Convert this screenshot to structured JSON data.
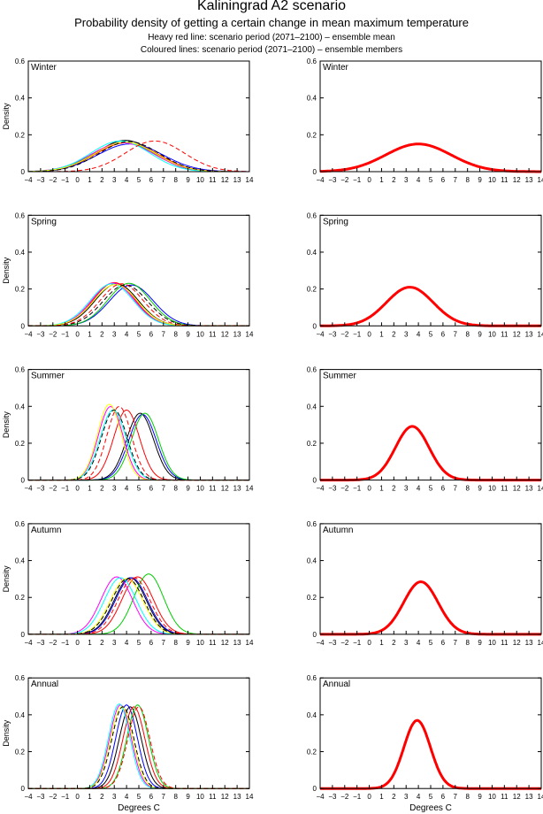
{
  "header": {
    "title": "Kaliningrad A2 scenario",
    "subtitle": "Probability density of getting a certain change in mean maximum temperature",
    "line1": "Heavy red line: scenario period (2071–2100) – ensemble mean",
    "line2": "Coloured lines: scenario period (2071–2100) – ensemble members"
  },
  "chart_data": {
    "type": "line",
    "xlabel": "Degrees C",
    "ylabel": "Density",
    "xlim": [
      -4,
      14
    ],
    "ylim": [
      0,
      0.6
    ],
    "xticks": [
      "−4",
      "−3",
      "−2",
      "−1",
      "0",
      "1",
      "2",
      "3",
      "4",
      "5",
      "6",
      "7",
      "8",
      "9",
      "10",
      "11",
      "12",
      "13",
      "14"
    ],
    "yticks": [
      "0",
      "0.2",
      "0.4",
      "0.6"
    ],
    "mean_color": "#ff0000",
    "seasons": [
      {
        "name": "Winter",
        "mean": {
          "mu": 4.0,
          "sd": 2.66
        },
        "members": [
          {
            "color": "#000000",
            "mu": 3.9,
            "sd": 2.35
          },
          {
            "color": "#0000ff",
            "mu": 4.3,
            "sd": 2.65
          },
          {
            "color": "#ff0000",
            "mu": 4.0,
            "sd": 2.55
          },
          {
            "color": "#00cc00",
            "mu": 3.8,
            "sd": 2.5
          },
          {
            "color": "#ff00ff",
            "mu": 3.7,
            "sd": 2.55
          },
          {
            "color": "#00ffff",
            "mu": 3.5,
            "sd": 2.4
          },
          {
            "color": "#ffff00",
            "mu": 3.9,
            "sd": 2.5
          },
          {
            "color": "#000000",
            "mu": 4.2,
            "sd": 2.45,
            "dash": true
          },
          {
            "color": "#ff0000",
            "mu": 6.3,
            "sd": 2.4,
            "dash": true
          }
        ]
      },
      {
        "name": "Spring",
        "mean": {
          "mu": 3.3,
          "sd": 1.9
        },
        "members": [
          {
            "color": "#000000",
            "mu": 3.2,
            "sd": 1.75
          },
          {
            "color": "#0000ff",
            "mu": 4.4,
            "sd": 1.8
          },
          {
            "color": "#ff0000",
            "mu": 3.0,
            "sd": 1.7
          },
          {
            "color": "#00cc00",
            "mu": 4.2,
            "sd": 1.73
          },
          {
            "color": "#ff00ff",
            "mu": 2.9,
            "sd": 1.72
          },
          {
            "color": "#00ffff",
            "mu": 2.8,
            "sd": 1.75
          },
          {
            "color": "#ffff00",
            "mu": 3.1,
            "sd": 1.78
          },
          {
            "color": "#000000",
            "mu": 3.9,
            "sd": 1.8,
            "dash": true
          },
          {
            "color": "#ff0000",
            "mu": 3.6,
            "sd": 1.75,
            "dash": true
          }
        ]
      },
      {
        "name": "Summer",
        "mean": {
          "mu": 3.5,
          "sd": 1.37
        },
        "members": [
          {
            "color": "#000000",
            "mu": 5.1,
            "sd": 1.1
          },
          {
            "color": "#0000ff",
            "mu": 5.3,
            "sd": 1.12
          },
          {
            "color": "#ff0000",
            "mu": 4.0,
            "sd": 1.05
          },
          {
            "color": "#00cc00",
            "mu": 5.5,
            "sd": 1.1
          },
          {
            "color": "#ff00ff",
            "mu": 2.7,
            "sd": 1.0
          },
          {
            "color": "#00ffff",
            "mu": 2.9,
            "sd": 1.05
          },
          {
            "color": "#ffff00",
            "mu": 2.6,
            "sd": 0.97
          },
          {
            "color": "#000000",
            "mu": 3.0,
            "sd": 1.05,
            "dash": true
          },
          {
            "color": "#ff0000",
            "mu": 3.4,
            "sd": 1.0,
            "dash": true
          }
        ]
      },
      {
        "name": "Autumn",
        "mean": {
          "mu": 4.2,
          "sd": 1.4
        },
        "members": [
          {
            "color": "#000000",
            "mu": 4.3,
            "sd": 1.3
          },
          {
            "color": "#0000ff",
            "mu": 4.4,
            "sd": 1.3
          },
          {
            "color": "#ff0000",
            "mu": 4.9,
            "sd": 1.28
          },
          {
            "color": "#00cc00",
            "mu": 5.8,
            "sd": 1.22
          },
          {
            "color": "#ff00ff",
            "mu": 3.2,
            "sd": 1.28
          },
          {
            "color": "#00ffff",
            "mu": 3.5,
            "sd": 1.3
          },
          {
            "color": "#ffff00",
            "mu": 4.0,
            "sd": 1.32
          },
          {
            "color": "#000000",
            "mu": 4.1,
            "sd": 1.32,
            "dash": true
          },
          {
            "color": "#ff0000",
            "mu": 4.6,
            "sd": 1.3,
            "dash": true
          }
        ]
      },
      {
        "name": "Annual",
        "mean": {
          "mu": 3.9,
          "sd": 1.08
        },
        "members": [
          {
            "color": "#000000",
            "mu": 4.3,
            "sd": 0.9
          },
          {
            "color": "#0000ff",
            "mu": 4.0,
            "sd": 0.88
          },
          {
            "color": "#ff0000",
            "mu": 4.6,
            "sd": 0.9
          },
          {
            "color": "#00cc00",
            "mu": 4.9,
            "sd": 0.88
          },
          {
            "color": "#ff00ff",
            "mu": 3.5,
            "sd": 0.88
          },
          {
            "color": "#00ffff",
            "mu": 3.4,
            "sd": 0.87
          },
          {
            "color": "#ffff00",
            "mu": 3.6,
            "sd": 0.9
          },
          {
            "color": "#000000",
            "mu": 3.7,
            "sd": 0.9,
            "dash": true
          },
          {
            "color": "#ff0000",
            "mu": 5.0,
            "sd": 0.9,
            "dash": true
          }
        ]
      }
    ]
  }
}
